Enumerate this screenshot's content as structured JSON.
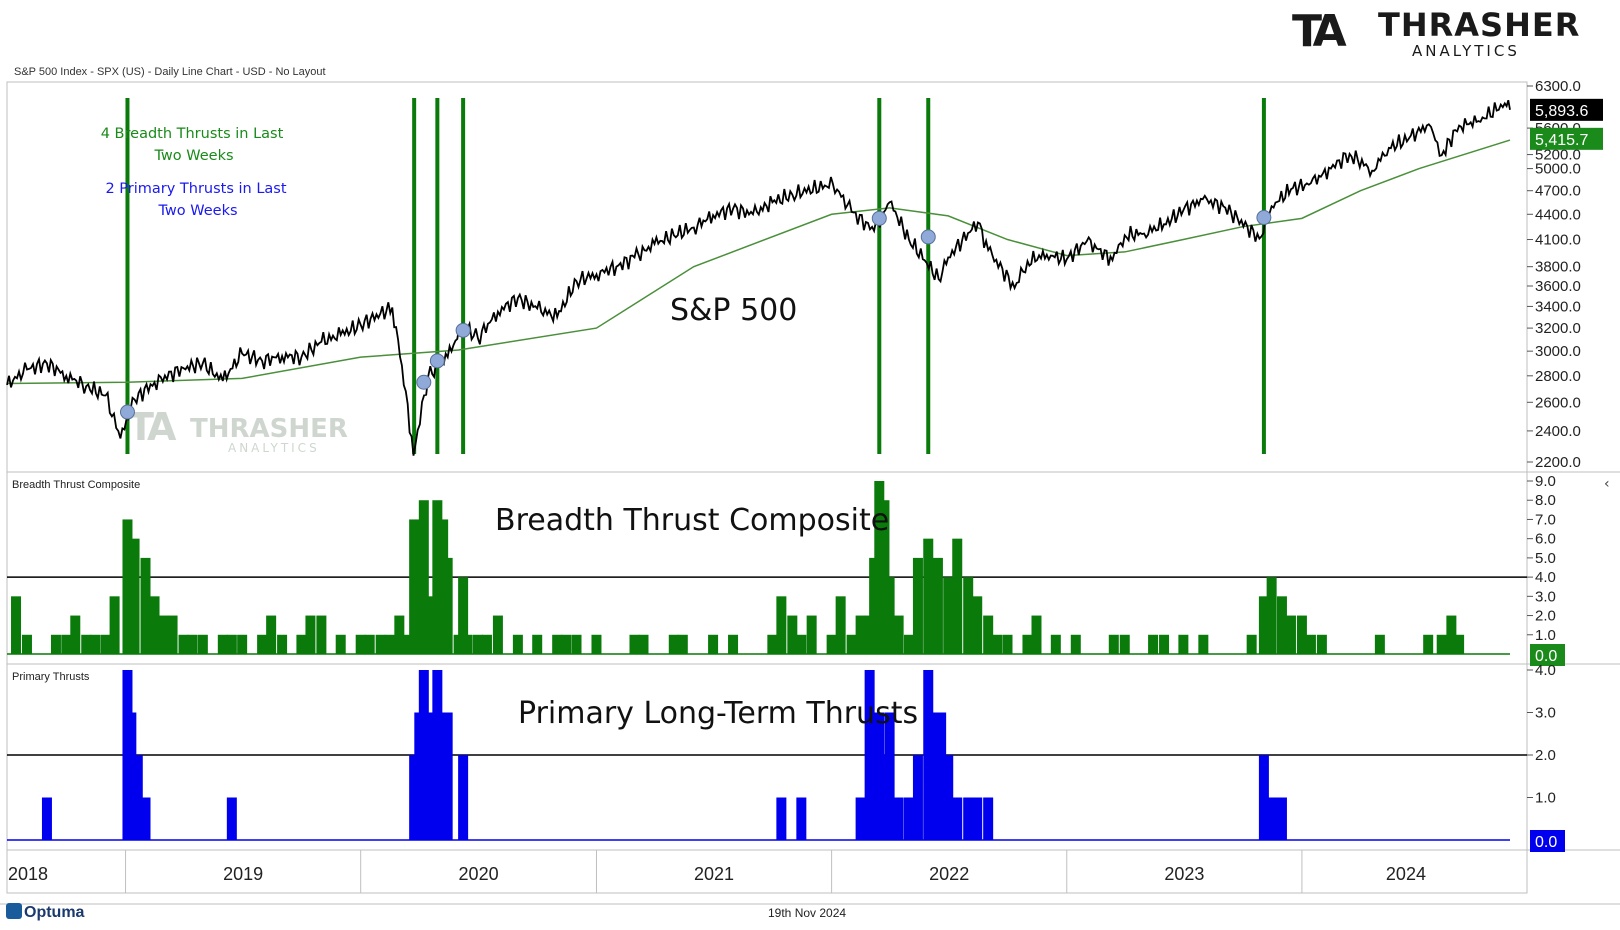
{
  "header": {
    "chart_title": "S&P 500 Index - SPX (US) - Daily Line Chart - USD - No Layout",
    "brand_mark": "TA",
    "brand_name": "THRASHER",
    "brand_sub": "ANALYTICS"
  },
  "footer": {
    "brand": "Optuma",
    "date": "19th Nov 2024"
  },
  "colors": {
    "price": "#000000",
    "ma": "#4a8f3a",
    "thrust_line": "#0a7a0a",
    "breadth": "#0a7a0a",
    "primary": "#0000ee",
    "dot": "#8fa9d9",
    "annotation_green": "#1a8a1a",
    "annotation_blue": "#1a1aee",
    "last_price_bg": "#000000",
    "ma_value_bg": "#1a8a1a",
    "breadth_value_bg": "#1a8a1a",
    "primary_value_bg": "#0000ee"
  },
  "chart_data": [
    {
      "type": "line",
      "panel": "price",
      "title": "S&P 500",
      "series": [
        {
          "x": [
            "2018-07-01",
            "2018-08-01",
            "2018-09-01",
            "2018-10-01",
            "2018-11-01",
            "2018-12-01",
            "2018-12-24",
            "2019-01-15",
            "2019-02-15",
            "2019-04-01",
            "2019-05-01",
            "2019-06-01",
            "2019-07-01",
            "2019-08-01",
            "2019-09-01",
            "2019-10-01",
            "2019-11-01",
            "2019-12-01",
            "2020-01-01",
            "2020-02-19",
            "2020-03-23",
            "2020-04-15",
            "2020-05-15",
            "2020-06-08",
            "2020-07-01",
            "2020-08-01",
            "2020-09-01",
            "2020-10-01",
            "2020-11-01",
            "2020-12-01",
            "2021-01-01",
            "2021-02-01",
            "2021-03-01",
            "2021-04-01",
            "2021-05-01",
            "2021-06-01",
            "2021-07-01",
            "2021-08-01",
            "2021-09-01",
            "2021-10-01",
            "2021-11-01",
            "2022-01-03",
            "2022-02-01",
            "2022-03-08",
            "2022-04-01",
            "2022-05-01",
            "2022-06-16",
            "2022-07-01",
            "2022-08-16",
            "2022-09-01",
            "2022-10-12",
            "2022-11-01",
            "2022-12-01",
            "2023-01-01",
            "2023-02-01",
            "2023-03-13",
            "2023-04-01",
            "2023-05-01",
            "2023-06-01",
            "2023-07-01",
            "2023-07-31",
            "2023-09-01",
            "2023-10-27",
            "2023-11-15",
            "2023-12-15",
            "2024-01-15",
            "2024-02-15",
            "2024-03-15",
            "2024-04-19",
            "2024-05-15",
            "2024-06-15",
            "2024-07-16",
            "2024-08-05",
            "2024-09-01",
            "2024-10-01",
            "2024-11-11",
            "2024-11-19"
          ],
          "y": [
            2730,
            2850,
            2900,
            2800,
            2720,
            2650,
            2350,
            2620,
            2750,
            2860,
            2900,
            2760,
            2980,
            2920,
            2960,
            2950,
            3080,
            3140,
            3230,
            3390,
            2240,
            2800,
            2950,
            3230,
            3110,
            3350,
            3480,
            3380,
            3300,
            3650,
            3720,
            3800,
            3900,
            4050,
            4150,
            4240,
            4390,
            4470,
            4400,
            4550,
            4650,
            4790,
            4430,
            4200,
            4550,
            4100,
            3670,
            3900,
            4300,
            3980,
            3580,
            3860,
            3930,
            3880,
            4080,
            3870,
            4150,
            4170,
            4280,
            4450,
            4590,
            4500,
            4110,
            4500,
            4720,
            4800,
            5000,
            5210,
            4970,
            5300,
            5440,
            5660,
            5190,
            5640,
            5710,
            6000,
            5893.6
          ],
          "name": ""
        },
        {
          "x": [
            "2018-07-01",
            "2019-01-01",
            "2019-07-01",
            "2020-01-01",
            "2020-06-01",
            "2021-01-01",
            "2021-06-01",
            "2022-01-01",
            "2022-04-01",
            "2022-07-01",
            "2022-10-01",
            "2023-01-01",
            "2023-04-01",
            "2023-07-01",
            "2023-10-01",
            "2024-01-01",
            "2024-04-01",
            "2024-07-01",
            "2024-11-19"
          ],
          "y": [
            2740,
            2750,
            2780,
            2950,
            3010,
            3200,
            3800,
            4400,
            4480,
            4380,
            4100,
            3920,
            3960,
            4100,
            4250,
            4350,
            4700,
            5000,
            5415.7
          ],
          "name": ""
        }
      ],
      "ylim": [
        2200,
        6300
      ],
      "yscale": "log",
      "yticks": [
        "2200.0",
        "2400.0",
        "2600.0",
        "2800.0",
        "3000.0",
        "3200.0",
        "3400.0",
        "3600.0",
        "3800.0",
        "4100.0",
        "4400.0",
        "4700.0",
        "5000.0",
        "5200.0",
        "5600.0",
        "6300.0"
      ],
      "last_price": "5,893.6",
      "ma_value": "5,415.7",
      "thrust_lines": [
        "2019-01-04",
        "2020-03-24",
        "2020-04-29",
        "2020-06-08",
        "2022-03-16",
        "2022-05-31",
        "2023-11-03"
      ],
      "thrust_dots": [
        {
          "x": "2019-01-04",
          "y": 2530
        },
        {
          "x": "2020-04-08",
          "y": 2750
        },
        {
          "x": "2020-04-29",
          "y": 2920
        },
        {
          "x": "2020-06-08",
          "y": 3180
        },
        {
          "x": "2022-03-16",
          "y": 4350
        },
        {
          "x": "2022-05-31",
          "y": 4130
        },
        {
          "x": "2023-11-03",
          "y": 4360
        }
      ],
      "annotations": {
        "breadth_count": "4 Breadth Thrusts in Last Two Weeks",
        "primary_count": "2 Primary Thrusts in Last Two Weeks"
      }
    },
    {
      "type": "bar",
      "panel": "breadth",
      "title": "Breadth Thrust Composite",
      "label": "Breadth Thrust Composite",
      "ylim": [
        0,
        9
      ],
      "yticks": [
        "1.0",
        "2.0",
        "3.0",
        "4.0",
        "5.0",
        "6.0",
        "7.0",
        "8.0",
        "9.0"
      ],
      "threshold": 4,
      "last_value": "0.0",
      "x": [
        "2018-07-15",
        "2018-08-01",
        "2018-09-15",
        "2018-10-01",
        "2018-10-15",
        "2018-11-01",
        "2018-11-15",
        "2018-12-01",
        "2018-12-15",
        "2019-01-04",
        "2019-01-15",
        "2019-02-01",
        "2019-02-15",
        "2019-03-01",
        "2019-03-15",
        "2019-04-01",
        "2019-04-15",
        "2019-05-01",
        "2019-06-01",
        "2019-06-15",
        "2019-07-01",
        "2019-08-01",
        "2019-08-15",
        "2019-09-01",
        "2019-10-01",
        "2019-10-15",
        "2019-11-01",
        "2019-12-01",
        "2020-01-01",
        "2020-01-15",
        "2020-02-01",
        "2020-02-15",
        "2020-03-01",
        "2020-03-15",
        "2020-03-24",
        "2020-04-01",
        "2020-04-08",
        "2020-04-15",
        "2020-04-29",
        "2020-05-08",
        "2020-05-15",
        "2020-06-01",
        "2020-06-08",
        "2020-06-15",
        "2020-07-01",
        "2020-07-15",
        "2020-08-01",
        "2020-09-01",
        "2020-10-01",
        "2020-11-01",
        "2020-11-15",
        "2020-12-01",
        "2021-01-01",
        "2021-03-01",
        "2021-03-15",
        "2021-05-01",
        "2021-05-15",
        "2021-07-01",
        "2021-08-01",
        "2021-10-01",
        "2021-10-15",
        "2021-11-01",
        "2021-11-15",
        "2021-12-01",
        "2022-01-01",
        "2022-01-15",
        "2022-02-01",
        "2022-02-15",
        "2022-03-01",
        "2022-03-08",
        "2022-03-16",
        "2022-03-24",
        "2022-04-01",
        "2022-04-15",
        "2022-05-01",
        "2022-05-15",
        "2022-05-31",
        "2022-06-15",
        "2022-07-01",
        "2022-07-15",
        "2022-08-01",
        "2022-08-15",
        "2022-09-01",
        "2022-09-15",
        "2022-10-01",
        "2022-11-01",
        "2022-11-15",
        "2022-12-15",
        "2023-01-15",
        "2023-03-15",
        "2023-04-01",
        "2023-05-15",
        "2023-06-01",
        "2023-07-01",
        "2023-08-01",
        "2023-10-15",
        "2023-11-03",
        "2023-11-15",
        "2023-12-01",
        "2023-12-15",
        "2024-01-01",
        "2024-01-15",
        "2024-02-01",
        "2024-05-01",
        "2024-07-15",
        "2024-08-05",
        "2024-08-20",
        "2024-09-01"
      ],
      "values": [
        3,
        1,
        1,
        1,
        2,
        1,
        1,
        1,
        3,
        7,
        6,
        5,
        3,
        2,
        2,
        1,
        1,
        1,
        1,
        1,
        1,
        1,
        2,
        1,
        1,
        2,
        2,
        1,
        1,
        1,
        1,
        1,
        2,
        1,
        7,
        6,
        8,
        3,
        8,
        7,
        5,
        1,
        4,
        1,
        1,
        1,
        2,
        1,
        1,
        1,
        1,
        1,
        1,
        1,
        1,
        1,
        1,
        1,
        1,
        1,
        3,
        2,
        1,
        2,
        1,
        3,
        1,
        2,
        2,
        5,
        9,
        8,
        4,
        2,
        1,
        5,
        6,
        5,
        4,
        6,
        4,
        3,
        2,
        1,
        1,
        1,
        2,
        1,
        1,
        1,
        1,
        1,
        1,
        1,
        1,
        1,
        3,
        4,
        3,
        2,
        2,
        1,
        1,
        1,
        1,
        1,
        2,
        1
      ]
    },
    {
      "type": "bar",
      "panel": "primary",
      "title": "Primary Long-Term Thrusts",
      "label": "Primary Thrusts",
      "ylim": [
        0,
        4
      ],
      "yticks": [
        "1.0",
        "2.0",
        "3.0",
        "4.0"
      ],
      "threshold": 2,
      "last_value": "0.0",
      "x": [
        "2018-09-01",
        "2019-01-04",
        "2019-01-10",
        "2019-01-20",
        "2019-02-01",
        "2019-06-15",
        "2020-03-24",
        "2020-04-01",
        "2020-04-08",
        "2020-04-15",
        "2020-04-29",
        "2020-05-08",
        "2020-05-15",
        "2020-06-08",
        "2021-10-15",
        "2021-11-15",
        "2022-02-15",
        "2022-03-01",
        "2022-03-08",
        "2022-03-16",
        "2022-03-24",
        "2022-04-01",
        "2022-04-15",
        "2022-05-01",
        "2022-05-15",
        "2022-05-31",
        "2022-06-10",
        "2022-06-20",
        "2022-07-01",
        "2022-07-15",
        "2022-08-01",
        "2022-08-15",
        "2022-09-01",
        "2023-11-03",
        "2023-11-10",
        "2023-11-20",
        "2023-12-01"
      ],
      "values": [
        1,
        4,
        3,
        2,
        1,
        1,
        2,
        3,
        4,
        3,
        4,
        3,
        3,
        2,
        1,
        1,
        1,
        4,
        3,
        3,
        2,
        3,
        1,
        1,
        2,
        4,
        3,
        3,
        2,
        1,
        1,
        1,
        1,
        2,
        1,
        1,
        1
      ]
    }
  ],
  "time_axis": {
    "labels": [
      "2018",
      "2019",
      "2020",
      "2021",
      "2022",
      "2023",
      "2024"
    ],
    "start": "2018-07-01",
    "end": "2024-11-19"
  }
}
